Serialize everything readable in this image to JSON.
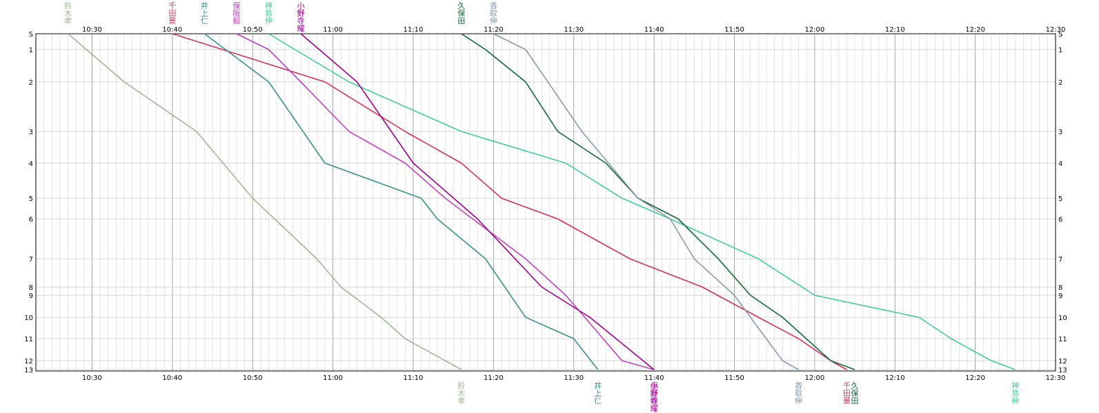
{
  "chart_data": {
    "type": "line",
    "x_axis": {
      "unit": "time",
      "range": [
        "10:23",
        "12:30"
      ],
      "major_ticks": [
        "10:30",
        "10:40",
        "10:50",
        "11:00",
        "11:10",
        "11:20",
        "11:30",
        "11:40",
        "11:50",
        "12:00",
        "12:10",
        "12:20",
        "12:30"
      ],
      "minor_interval_min": 1
    },
    "y_axis": {
      "range": [
        0,
        13
      ],
      "ticks": [
        "S",
        "1",
        "2",
        "3",
        "4",
        "5",
        "6",
        "7",
        "8",
        "9",
        "10",
        "11",
        "12",
        "13"
      ],
      "tick_values": [
        0,
        1,
        2,
        3,
        4,
        5,
        6,
        7,
        8,
        9,
        10,
        11,
        12,
        13
      ]
    },
    "grid": true,
    "series": [
      {
        "name": "鈴木孝",
        "color": "#a3b596",
        "label_top_end": "start",
        "points": [
          [
            "10:27",
            0
          ],
          [
            "10:34",
            2
          ],
          [
            "10:43",
            3
          ],
          [
            "10:50",
            5
          ],
          [
            "10:58",
            7
          ],
          [
            "11:01",
            8
          ],
          [
            "11:06",
            10
          ],
          [
            "11:09",
            11
          ],
          [
            "11:14",
            12
          ],
          [
            "11:16",
            13
          ]
        ]
      },
      {
        "name": "千田景",
        "color": "#cc3355",
        "points": [
          [
            "10:40",
            0
          ],
          [
            "10:59",
            2
          ],
          [
            "11:09",
            3
          ],
          [
            "11:16",
            4
          ],
          [
            "11:21",
            5
          ],
          [
            "11:28",
            6
          ],
          [
            "11:37",
            7
          ],
          [
            "11:46",
            8
          ],
          [
            "11:53",
            10
          ],
          [
            "11:58",
            11
          ],
          [
            "12:02",
            12
          ],
          [
            "12:04",
            13
          ]
        ]
      },
      {
        "name": "井上仁",
        "color": "#3a8f8a",
        "points": [
          [
            "10:44",
            0
          ],
          [
            "10:52",
            2
          ],
          [
            "10:59",
            4
          ],
          [
            "11:11",
            5
          ],
          [
            "11:13",
            6
          ],
          [
            "11:19",
            7
          ],
          [
            "11:24",
            10
          ],
          [
            "11:30",
            11
          ],
          [
            "11:33",
            13
          ]
        ]
      },
      {
        "name": "保阪毅",
        "color": "#bb44bb",
        "points": [
          [
            "10:48",
            0
          ],
          [
            "10:52",
            1
          ],
          [
            "10:56",
            2
          ],
          [
            "11:02",
            3
          ],
          [
            "11:09",
            4
          ],
          [
            "11:14",
            5
          ],
          [
            "11:24",
            7
          ],
          [
            "11:29",
            9
          ],
          [
            "11:36",
            12
          ],
          [
            "11:40",
            13
          ]
        ]
      },
      {
        "name": "神島伸",
        "color": "#44c79f",
        "points": [
          [
            "10:52",
            0
          ],
          [
            "11:02",
            2
          ],
          [
            "11:16",
            3
          ],
          [
            "11:29",
            4
          ],
          [
            "11:36",
            5
          ],
          [
            "11:42",
            6
          ],
          [
            "11:53",
            7
          ],
          [
            "12:00",
            9
          ],
          [
            "12:13",
            10
          ],
          [
            "12:17",
            11
          ],
          [
            "12:22",
            12
          ],
          [
            "12:25",
            13
          ]
        ]
      },
      {
        "name": "小野寺耀",
        "color": "#990088",
        "points": [
          [
            "10:56",
            0
          ],
          [
            "11:03",
            2
          ],
          [
            "11:10",
            4
          ],
          [
            "11:18",
            6
          ],
          [
            "11:26",
            8
          ],
          [
            "11:32",
            10
          ],
          [
            "11:40",
            13
          ]
        ]
      },
      {
        "name": "久保田",
        "color": "#116633",
        "points": [
          [
            "11:16",
            0
          ],
          [
            "11:19",
            1
          ],
          [
            "11:24",
            2
          ],
          [
            "11:28",
            3
          ],
          [
            "11:34",
            4
          ],
          [
            "11:38",
            5
          ],
          [
            "11:43",
            6
          ],
          [
            "11:48",
            7
          ],
          [
            "11:52",
            9
          ],
          [
            "11:56",
            10
          ],
          [
            "12:02",
            12
          ],
          [
            "12:05",
            13
          ]
        ]
      },
      {
        "name": "香取伸",
        "color": "#8899aa",
        "points": [
          [
            "11:20",
            0
          ],
          [
            "11:24",
            1
          ],
          [
            "11:31",
            3
          ],
          [
            "11:38",
            5
          ],
          [
            "11:42",
            6
          ],
          [
            "11:45",
            7
          ],
          [
            "11:50",
            9
          ],
          [
            "11:52",
            10
          ],
          [
            "11:56",
            12
          ],
          [
            "11:58",
            13
          ]
        ]
      }
    ]
  }
}
